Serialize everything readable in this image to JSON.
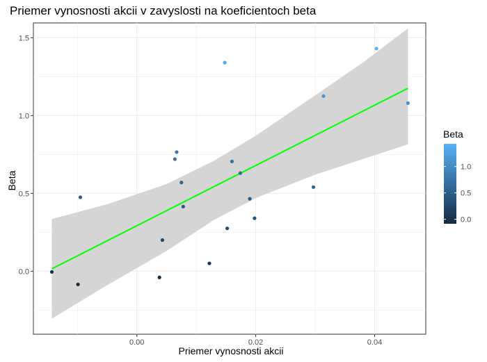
{
  "chart_data": {
    "type": "scatter",
    "title": "Priemer vynosnosti akcii v zavyslosti na koeficientoch beta",
    "xlabel": "Priemer vynosnosti akcii",
    "ylabel": "Beta",
    "xlim": [
      -0.0174,
      0.0486
    ],
    "ylim": [
      -0.405,
      1.595
    ],
    "x_ticks": [
      0.0,
      0.02,
      0.04
    ],
    "x_tick_labels": [
      "0.00",
      "0.02",
      "0.04"
    ],
    "y_ticks": [
      0.0,
      0.5,
      1.0,
      1.5
    ],
    "y_tick_labels": [
      "0.0",
      "0.5",
      "1.0",
      "1.5"
    ],
    "grid": true,
    "background": "#ffffff",
    "points": [
      {
        "x": -0.0143,
        "y": -0.005
      },
      {
        "x": -0.0099,
        "y": -0.085
      },
      {
        "x": -0.0095,
        "y": 0.475
      },
      {
        "x": 0.0038,
        "y": -0.04
      },
      {
        "x": 0.0043,
        "y": 0.2
      },
      {
        "x": 0.0064,
        "y": 0.72
      },
      {
        "x": 0.0067,
        "y": 0.765
      },
      {
        "x": 0.0075,
        "y": 0.57
      },
      {
        "x": 0.0078,
        "y": 0.415
      },
      {
        "x": 0.0122,
        "y": 0.05
      },
      {
        "x": 0.0148,
        "y": 1.34
      },
      {
        "x": 0.0152,
        "y": 0.275
      },
      {
        "x": 0.016,
        "y": 0.705
      },
      {
        "x": 0.0174,
        "y": 0.63
      },
      {
        "x": 0.019,
        "y": 0.465
      },
      {
        "x": 0.0198,
        "y": 0.34
      },
      {
        "x": 0.0297,
        "y": 0.54
      },
      {
        "x": 0.0314,
        "y": 1.125
      },
      {
        "x": 0.0403,
        "y": 1.43
      },
      {
        "x": 0.0456,
        "y": 1.08
      }
    ],
    "regression": {
      "method": "lm",
      "x": [
        -0.0143,
        0.0456
      ],
      "y": [
        0.015,
        1.175
      ],
      "color": "#00ff00",
      "ci_band": [
        {
          "x": -0.0143,
          "lower": -0.305,
          "upper": 0.335
        },
        {
          "x": -0.005,
          "lower": -0.09,
          "upper": 0.43
        },
        {
          "x": 0.005,
          "lower": 0.13,
          "upper": 0.56
        },
        {
          "x": 0.013,
          "lower": 0.33,
          "upper": 0.71
        },
        {
          "x": 0.02,
          "lower": 0.47,
          "upper": 0.87
        },
        {
          "x": 0.03,
          "lower": 0.62,
          "upper": 1.13
        },
        {
          "x": 0.038,
          "lower": 0.72,
          "upper": 1.34
        },
        {
          "x": 0.0456,
          "lower": 0.815,
          "upper": 1.56
        }
      ],
      "band_color": "#d5d5d5"
    },
    "color_scale": {
      "title": "Beta",
      "variable": "y",
      "low_color": "#132b43",
      "high_color": "#56b1f7",
      "range": [
        -0.085,
        1.43
      ],
      "ticks": [
        0.0,
        0.5,
        1.0
      ],
      "tick_labels": [
        "0.0",
        "0.5",
        "1.0"
      ],
      "legend_position": "right"
    }
  }
}
